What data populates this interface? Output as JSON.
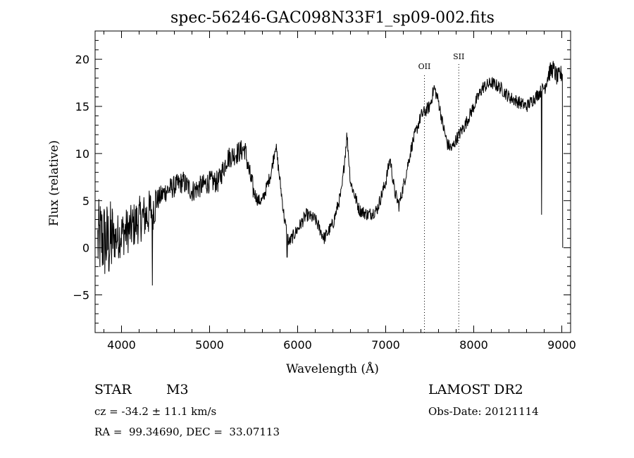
{
  "chart_data": {
    "type": "line",
    "title": "spec-56246-GAC098N33F1_sp09-002.fits",
    "xlabel": "Wavelength (Å)",
    "ylabel": "Flux (relative)",
    "xlim": [
      3700,
      9100
    ],
    "ylim": [
      -9,
      23
    ],
    "xticks": [
      4000,
      5000,
      6000,
      7000,
      8000,
      9000
    ],
    "yticks": [
      -5,
      0,
      5,
      10,
      15,
      20
    ],
    "lines": [
      {
        "label": "OII",
        "x": 7440
      },
      {
        "label": "SII",
        "x": 7830
      }
    ],
    "spectrum_knots": [
      [
        3700,
        0.0
      ],
      [
        3760,
        1.0
      ],
      [
        3850,
        0.5
      ],
      [
        4000,
        1.5
      ],
      [
        4100,
        2.0
      ],
      [
        4200,
        3.0
      ],
      [
        4300,
        3.5
      ],
      [
        4400,
        5.0
      ],
      [
        4500,
        6.0
      ],
      [
        4600,
        6.5
      ],
      [
        4700,
        7.0
      ],
      [
        4800,
        6.0
      ],
      [
        4900,
        6.5
      ],
      [
        5000,
        7.0
      ],
      [
        5100,
        7.0
      ],
      [
        5200,
        9.5
      ],
      [
        5300,
        10.0
      ],
      [
        5400,
        10.5
      ],
      [
        5450,
        8.0
      ],
      [
        5500,
        6.0
      ],
      [
        5550,
        5.0
      ],
      [
        5600,
        5.0
      ],
      [
        5700,
        8.0
      ],
      [
        5750,
        11.0
      ],
      [
        5800,
        7.0
      ],
      [
        5850,
        3.0
      ],
      [
        5900,
        0.5
      ],
      [
        6000,
        2.0
      ],
      [
        6100,
        3.5
      ],
      [
        6200,
        3.0
      ],
      [
        6300,
        1.0
      ],
      [
        6400,
        2.5
      ],
      [
        6500,
        6.0
      ],
      [
        6560,
        12.0
      ],
      [
        6600,
        7.0
      ],
      [
        6700,
        4.0
      ],
      [
        6800,
        3.5
      ],
      [
        6900,
        4.0
      ],
      [
        7000,
        7.0
      ],
      [
        7050,
        9.5
      ],
      [
        7100,
        6.0
      ],
      [
        7150,
        4.5
      ],
      [
        7200,
        6.5
      ],
      [
        7300,
        11.0
      ],
      [
        7400,
        14.0
      ],
      [
        7500,
        15.0
      ],
      [
        7550,
        17.0
      ],
      [
        7600,
        15.5
      ],
      [
        7650,
        13.0
      ],
      [
        7700,
        11.0
      ],
      [
        7750,
        10.5
      ],
      [
        7800,
        11.5
      ],
      [
        7900,
        13.0
      ],
      [
        8000,
        15.0
      ],
      [
        8100,
        17.0
      ],
      [
        8200,
        17.5
      ],
      [
        8300,
        17.0
      ],
      [
        8400,
        16.0
      ],
      [
        8500,
        15.5
      ],
      [
        8600,
        15.0
      ],
      [
        8700,
        16.0
      ],
      [
        8800,
        17.0
      ],
      [
        8850,
        18.5
      ],
      [
        8900,
        19.0
      ],
      [
        8950,
        18.0
      ],
      [
        9000,
        18.5
      ]
    ],
    "absorption_spikes": [
      {
        "x": 5880,
        "y": -1.0
      },
      {
        "x": 4350,
        "y": -4.0
      },
      {
        "x": 8770,
        "y": 3.5
      },
      {
        "x": 9010,
        "y": 0.0
      }
    ]
  },
  "info": {
    "object_class": "STAR",
    "subclass": "M3",
    "survey": "LAMOST DR2",
    "redshift": "cz = -34.2 ± 11.1 km/s",
    "obs_date": "Obs-Date: 20121114",
    "coords": "RA =  99.34690, DEC =  33.07113"
  }
}
